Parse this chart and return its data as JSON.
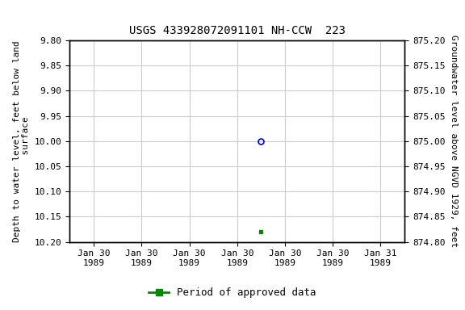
{
  "title": "USGS 433928072091101 NH-CCW  223",
  "ylabel_left": "Depth to water level, feet below land\n  surface",
  "ylabel_right": "Groundwater level above NGVD 1929, feet",
  "ylim_left_top": 9.8,
  "ylim_left_bottom": 10.2,
  "ylim_right_top": 875.2,
  "ylim_right_bottom": 874.8,
  "yticks_left": [
    9.8,
    9.85,
    9.9,
    9.95,
    10.0,
    10.05,
    10.1,
    10.15,
    10.2
  ],
  "yticks_right": [
    875.2,
    875.15,
    875.1,
    875.05,
    875.0,
    874.95,
    874.9,
    874.85,
    874.8
  ],
  "blue_x": 3.5,
  "blue_y": 10.0,
  "green_x": 3.5,
  "green_y": 10.18,
  "x_min": 0,
  "x_max": 6,
  "xtick_positions": [
    0,
    1,
    2,
    3,
    4,
    5,
    6
  ],
  "xtick_labels": [
    "Jan 30\n1989",
    "Jan 30\n1989",
    "Jan 30\n1989",
    "Jan 30\n1989",
    "Jan 30\n1989",
    "Jan 30\n1989",
    "Jan 31\n1989"
  ],
  "legend_label": "Period of approved data",
  "legend_color": "#008800",
  "blue_color": "#0000cc",
  "background_color": "#ffffff",
  "grid_color": "#cccccc",
  "title_fontsize": 10,
  "axis_label_fontsize": 8,
  "tick_fontsize": 8
}
